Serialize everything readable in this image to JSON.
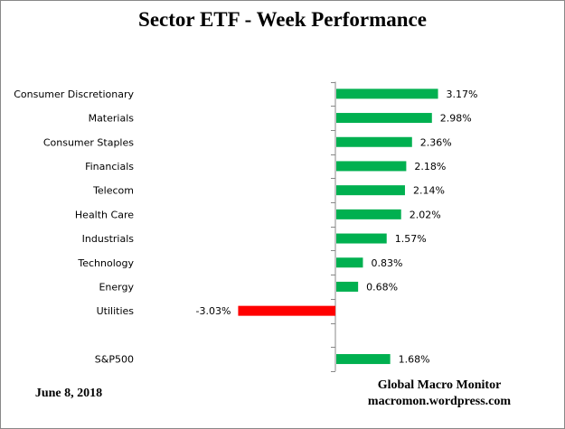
{
  "chart_data": {
    "type": "bar",
    "orientation": "horizontal",
    "title": "Sector ETF - Week Performance",
    "categories": [
      "Consumer Discretionary",
      "Materials",
      "Consumer Staples",
      "Financials",
      "Telecom",
      "Health Care",
      "Industrials",
      "Technology",
      "Energy",
      "Utilities",
      "",
      "S&P500"
    ],
    "values": [
      3.17,
      2.98,
      2.36,
      2.18,
      2.14,
      2.02,
      1.57,
      0.83,
      0.68,
      -3.03,
      null,
      1.68
    ],
    "labels": [
      "3.17%",
      "2.98%",
      "2.36%",
      "2.18%",
      "2.14%",
      "2.02%",
      "1.57%",
      "0.83%",
      "0.68%",
      "-3.03%",
      "",
      "1.68%"
    ],
    "unit": "%",
    "colors": {
      "positive": "#00B050",
      "negative": "#FF0000"
    },
    "grid": false,
    "legend": "none"
  },
  "footer": {
    "date": "June 8, 2018",
    "source_name": "Global Macro Monitor",
    "source_url": "macromon.wordpress.com"
  }
}
